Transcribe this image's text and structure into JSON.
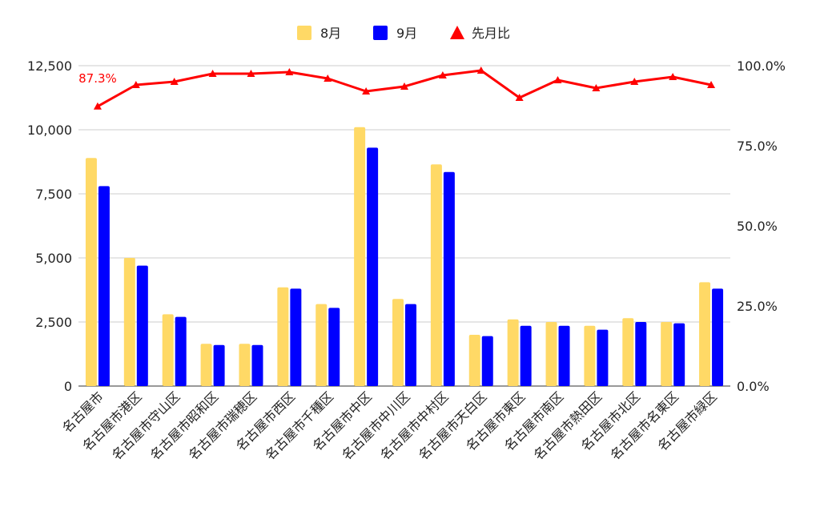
{
  "chart_data": {
    "type": "bar",
    "categories": [
      "名古屋市",
      "名古屋市港区",
      "名古屋市守山区",
      "名古屋市昭和区",
      "名古屋市瑞穂区",
      "名古屋市西区",
      "名古屋市千種区",
      "名古屋市中区",
      "名古屋市中川区",
      "名古屋市中村区",
      "名古屋市天白区",
      "名古屋市東区",
      "名古屋市南区",
      "名古屋市熱田区",
      "名古屋市北区",
      "名古屋市名東区",
      "名古屋市緑区"
    ],
    "series": [
      {
        "name": "8月",
        "kind": "bar",
        "axis": "left",
        "color": "#FFD966",
        "values": [
          8900,
          5000,
          2800,
          1650,
          1650,
          3850,
          3200,
          10100,
          3400,
          8650,
          2000,
          2600,
          2500,
          2350,
          2650,
          2500,
          4050
        ]
      },
      {
        "name": "9月",
        "kind": "bar",
        "axis": "left",
        "color": "#0000FF",
        "values": [
          7800,
          4700,
          2700,
          1600,
          1600,
          3800,
          3050,
          9300,
          3200,
          8350,
          1950,
          2350,
          2350,
          2200,
          2500,
          2450,
          3800
        ]
      },
      {
        "name": "先月比",
        "kind": "line",
        "axis": "right",
        "color": "#FF0000",
        "marker": "triangle",
        "values": [
          87.3,
          94.0,
          95.0,
          97.5,
          97.5,
          98.0,
          96.0,
          92.0,
          93.5,
          97.0,
          98.5,
          90.0,
          95.5,
          93.0,
          95.0,
          96.5,
          94.0
        ]
      }
    ],
    "y_left": {
      "ylim": [
        0,
        12500
      ],
      "ticks": [
        "0",
        "2,500",
        "5,000",
        "7,500",
        "10,000",
        "12,500"
      ]
    },
    "y_right": {
      "ylim": [
        0,
        100
      ],
      "ticks": [
        "0.0%",
        "25.0%",
        "50.0%",
        "75.0%",
        "100.0%"
      ]
    },
    "data_labels": [
      {
        "series": "先月比",
        "index": 0,
        "text": "87.3%"
      }
    ],
    "legend": "top",
    "grid": true
  }
}
